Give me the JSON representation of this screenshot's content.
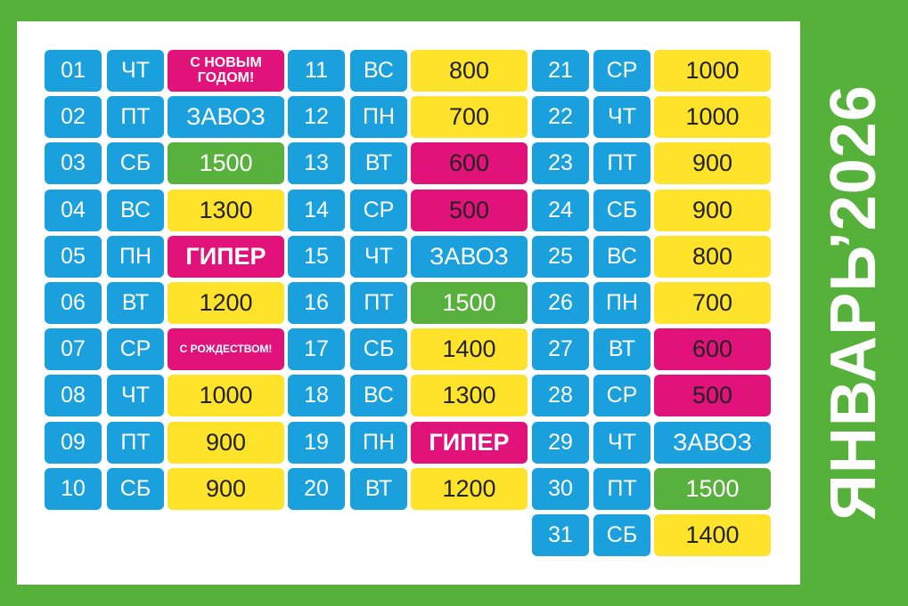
{
  "title": "ЯНВАРЬ’2026",
  "colors": {
    "frame": "#56b13a",
    "blue": "#1aa0dc",
    "yellow": "#fee32a",
    "green": "#58b13d",
    "pink": "#e2127b"
  },
  "days": [
    {
      "day": "01",
      "weekday": "ЧТ",
      "event": "С НОВЫМ ГОДОМ!",
      "color": "pink",
      "style": "small"
    },
    {
      "day": "02",
      "weekday": "ПТ",
      "event": "ЗАВОЗ",
      "color": "blue",
      "style": ""
    },
    {
      "day": "03",
      "weekday": "СБ",
      "event": "1500",
      "color": "green",
      "style": ""
    },
    {
      "day": "04",
      "weekday": "ВС",
      "event": "1300",
      "color": "yellow",
      "style": ""
    },
    {
      "day": "05",
      "weekday": "ПН",
      "event": "ГИПЕР",
      "color": "pink",
      "style": "bold"
    },
    {
      "day": "06",
      "weekday": "ВТ",
      "event": "1200",
      "color": "yellow",
      "style": ""
    },
    {
      "day": "07",
      "weekday": "СР",
      "event": "С РОЖДЕСТВОМ!",
      "color": "pink",
      "style": "tiny"
    },
    {
      "day": "08",
      "weekday": "ЧТ",
      "event": "1000",
      "color": "yellow",
      "style": ""
    },
    {
      "day": "09",
      "weekday": "ПТ",
      "event": "900",
      "color": "yellow",
      "style": ""
    },
    {
      "day": "10",
      "weekday": "СБ",
      "event": "900",
      "color": "yellow",
      "style": ""
    },
    {
      "day": "11",
      "weekday": "ВС",
      "event": "800",
      "color": "yellow",
      "style": ""
    },
    {
      "day": "12",
      "weekday": "ПН",
      "event": "700",
      "color": "yellow",
      "style": ""
    },
    {
      "day": "13",
      "weekday": "ВТ",
      "event": "600",
      "color": "pink",
      "style": ""
    },
    {
      "day": "14",
      "weekday": "СР",
      "event": "500",
      "color": "pink",
      "style": ""
    },
    {
      "day": "15",
      "weekday": "ЧТ",
      "event": "ЗАВОЗ",
      "color": "blue",
      "style": ""
    },
    {
      "day": "16",
      "weekday": "ПТ",
      "event": "1500",
      "color": "green",
      "style": ""
    },
    {
      "day": "17",
      "weekday": "СБ",
      "event": "1400",
      "color": "yellow",
      "style": ""
    },
    {
      "day": "18",
      "weekday": "ВС",
      "event": "1300",
      "color": "yellow",
      "style": ""
    },
    {
      "day": "19",
      "weekday": "ПН",
      "event": "ГИПЕР",
      "color": "pink",
      "style": "bold"
    },
    {
      "day": "20",
      "weekday": "ВТ",
      "event": "1200",
      "color": "yellow",
      "style": ""
    },
    {
      "day": "21",
      "weekday": "СР",
      "event": "1000",
      "color": "yellow",
      "style": ""
    },
    {
      "day": "22",
      "weekday": "ЧТ",
      "event": "1000",
      "color": "yellow",
      "style": ""
    },
    {
      "day": "23",
      "weekday": "ПТ",
      "event": "900",
      "color": "yellow",
      "style": ""
    },
    {
      "day": "24",
      "weekday": "СБ",
      "event": "900",
      "color": "yellow",
      "style": ""
    },
    {
      "day": "25",
      "weekday": "ВС",
      "event": "800",
      "color": "yellow",
      "style": ""
    },
    {
      "day": "26",
      "weekday": "ПН",
      "event": "700",
      "color": "yellow",
      "style": ""
    },
    {
      "day": "27",
      "weekday": "ВТ",
      "event": "600",
      "color": "pink",
      "style": ""
    },
    {
      "day": "28",
      "weekday": "СР",
      "event": "500",
      "color": "pink",
      "style": ""
    },
    {
      "day": "29",
      "weekday": "ЧТ",
      "event": "ЗАВОЗ",
      "color": "blue",
      "style": ""
    },
    {
      "day": "30",
      "weekday": "ПТ",
      "event": "1500",
      "color": "green",
      "style": ""
    },
    {
      "day": "31",
      "weekday": "СБ",
      "event": "1400",
      "color": "yellow",
      "style": ""
    }
  ]
}
